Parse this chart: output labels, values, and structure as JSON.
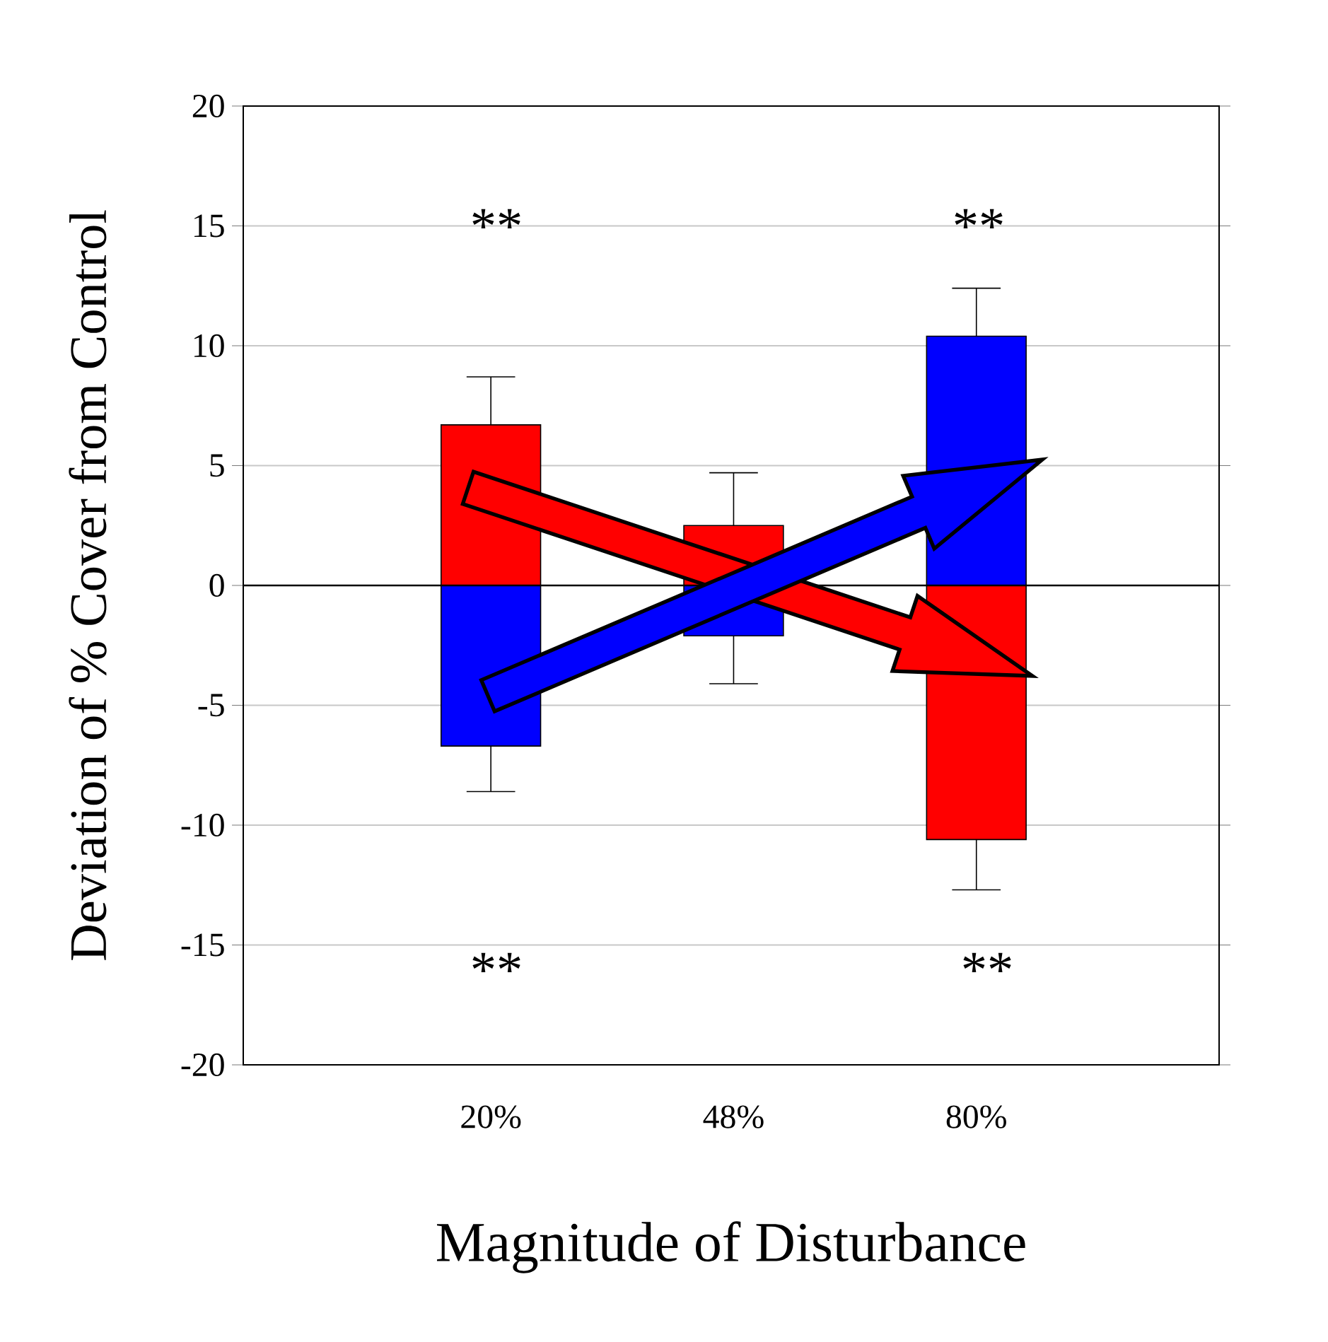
{
  "chart_data": {
    "type": "bar",
    "xlabel": "Magnitude of Disturbance",
    "ylabel": "Deviation of % Cover from Control",
    "categories": [
      "20%",
      "48%",
      "80%"
    ],
    "series": [
      {
        "color": "#ff0000",
        "values": [
          6.7,
          2.5,
          -10.6
        ],
        "errors": [
          [
            6.7,
            8.7
          ],
          [
            2.5,
            4.7
          ],
          [
            -12.7,
            -10.6
          ]
        ]
      },
      {
        "color": "#0000ff",
        "values": [
          -6.7,
          -2.1,
          10.4
        ],
        "errors": [
          [
            -8.6,
            -6.7
          ],
          [
            -4.1,
            -2.1
          ],
          [
            10.4,
            12.4
          ]
        ]
      }
    ],
    "ylim": [
      -20,
      20
    ],
    "yticks": [
      -20,
      -15,
      -10,
      -5,
      0,
      5,
      10,
      15,
      20
    ],
    "grid": "y",
    "stacked": true,
    "ref_lines": [
      {
        "axis": "y",
        "value": 0,
        "color": "#000000"
      }
    ],
    "annotations": [
      "**",
      "**",
      "**",
      "**"
    ]
  }
}
